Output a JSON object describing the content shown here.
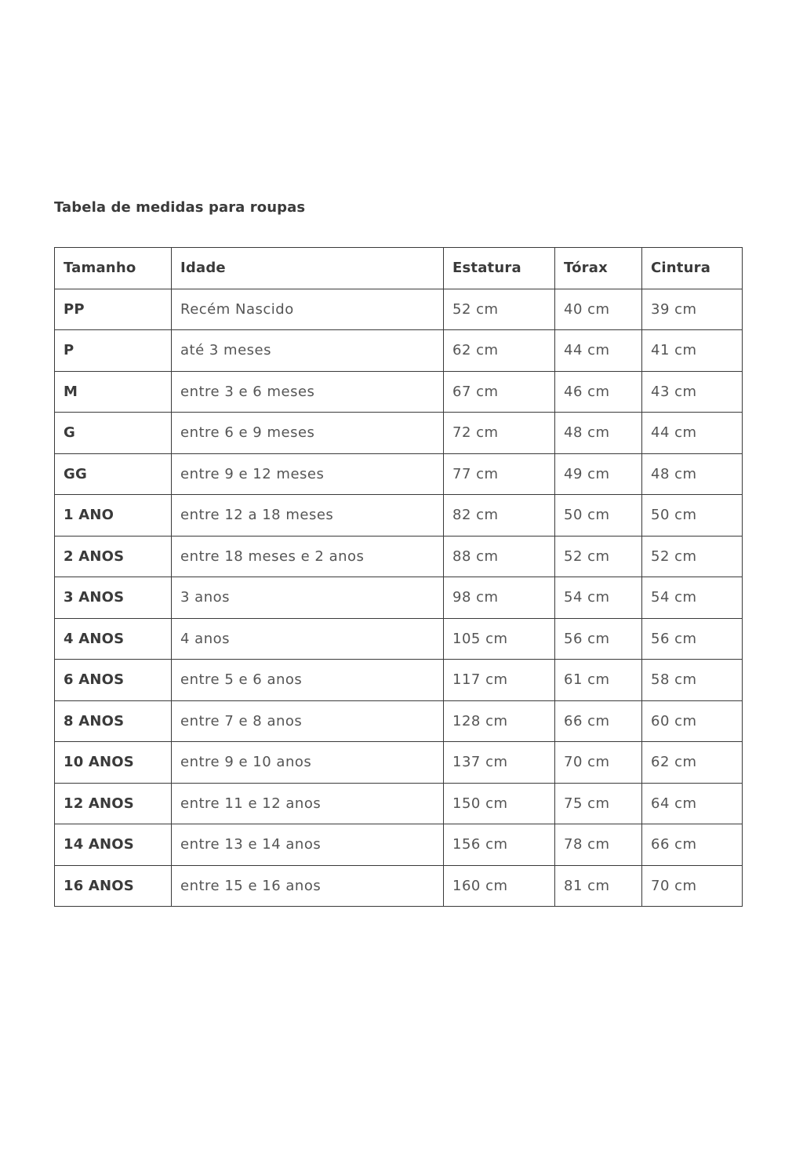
{
  "title": "Tabela de medidas para roupas",
  "table": {
    "headers": [
      "Tamanho",
      "Idade",
      "Estatura",
      "Tórax",
      "Cintura"
    ],
    "rows": [
      [
        "PP",
        "Recém Nascido",
        "52 cm",
        "40 cm",
        "39 cm"
      ],
      [
        "P",
        "até 3 meses",
        "62 cm",
        "44 cm",
        "41 cm"
      ],
      [
        "M",
        "entre 3 e 6 meses",
        "67 cm",
        "46 cm",
        "43 cm"
      ],
      [
        "G",
        "entre 6 e 9 meses",
        "72 cm",
        "48 cm",
        "44 cm"
      ],
      [
        "GG",
        "entre 9 e 12 meses",
        "77 cm",
        "49 cm",
        "48 cm"
      ],
      [
        "1 ANO",
        "entre 12 a 18 meses",
        "82 cm",
        "50 cm",
        "50 cm"
      ],
      [
        "2 ANOS",
        "entre 18 meses e 2 anos",
        "88 cm",
        "52 cm",
        "52 cm"
      ],
      [
        "3 ANOS",
        "3 anos",
        "98 cm",
        "54 cm",
        "54 cm"
      ],
      [
        "4 ANOS",
        "4 anos",
        "105 cm",
        "56 cm",
        "56 cm"
      ],
      [
        "6 ANOS",
        "entre 5 e 6 anos",
        "117 cm",
        "61 cm",
        "58 cm"
      ],
      [
        "8 ANOS",
        "entre 7 e 8 anos",
        "128 cm",
        "66 cm",
        "60 cm"
      ],
      [
        "10 ANOS",
        "entre 9 e 10 anos",
        "137 cm",
        "70 cm",
        "62 cm"
      ],
      [
        "12 ANOS",
        "entre 11 e 12 anos",
        "150 cm",
        "75 cm",
        "64 cm"
      ],
      [
        "14 ANOS",
        "entre 13 e 14 anos",
        "156 cm",
        "78 cm",
        "66 cm"
      ],
      [
        "16 ANOS",
        "entre 15 e 16 anos",
        "160 cm",
        "81 cm",
        "70 cm"
      ]
    ]
  }
}
